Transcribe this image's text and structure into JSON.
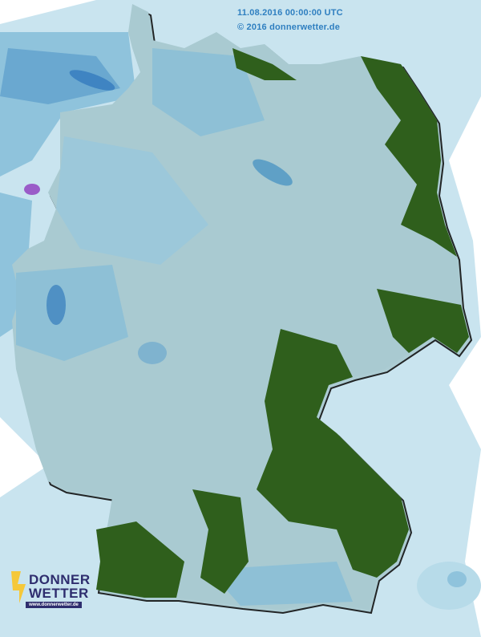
{
  "map": {
    "timestamp": "11.08.2016 00:00:00 UTC",
    "copyright": "© 2016 donnerwetter.de",
    "colors": {
      "background_precip": "#c5e2ee",
      "land": "#a9cad1",
      "rain_light": "#8ec0d6",
      "rain_medium": "#5fa0c6",
      "rain_heavy": "#2f78b8",
      "rain_extreme": "#8a4fc0",
      "dry": "#2f5f1c"
    }
  },
  "logo": {
    "line1": "DONNER",
    "line2": "WETTER",
    "url": "www.donnerwetter.de"
  }
}
